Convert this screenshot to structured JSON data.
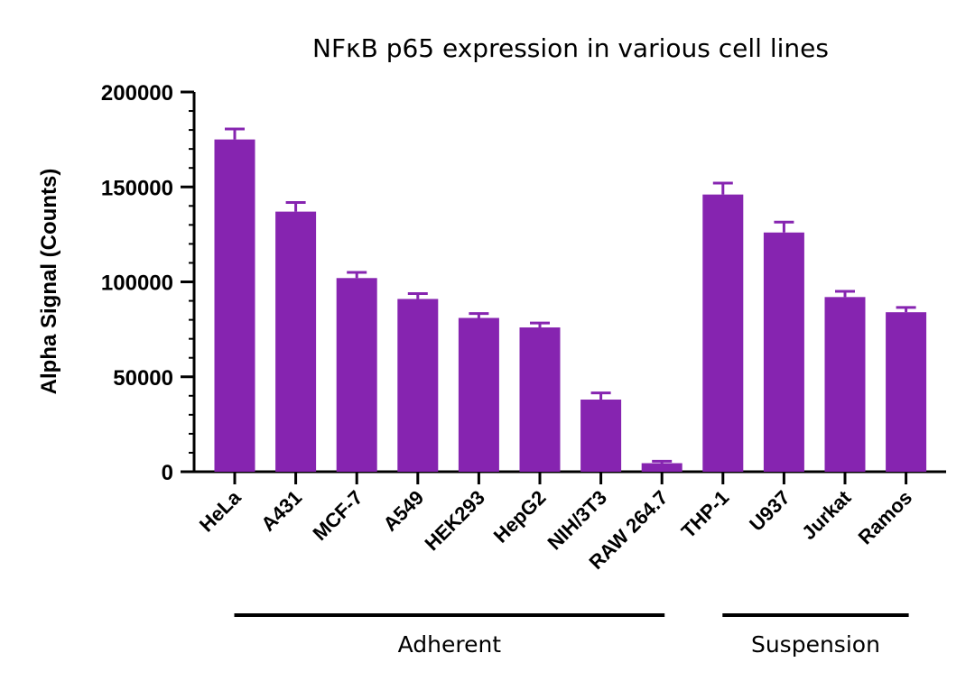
{
  "chart_data": {
    "type": "bar",
    "title": "NFκB p65 expression in various cell lines",
    "xlabel": "",
    "ylabel": "Alpha Signal (Counts)",
    "ylim": [
      0,
      200000
    ],
    "yticks": [
      "0",
      "50000",
      "100000",
      "150000",
      "200000"
    ],
    "categories": [
      "HeLa",
      "A431",
      "MCF-7",
      "A549",
      "HEK293",
      "HepG2",
      "NIH/3T3",
      "RAW 264.7",
      "THP-1",
      "U937",
      "Jurkat",
      "Ramos"
    ],
    "values": [
      175000,
      137000,
      102000,
      91000,
      81000,
      76000,
      38000,
      4500,
      146000,
      126000,
      92000,
      84000
    ],
    "errors": [
      5500,
      4800,
      3000,
      2800,
      2300,
      2300,
      3500,
      1000,
      6000,
      5500,
      3000,
      2500
    ],
    "groups": [
      {
        "label": "Adherent",
        "from": 0,
        "to": 7
      },
      {
        "label": "Suspension",
        "from": 8,
        "to": 11
      }
    ],
    "bar_color": "#8624b0",
    "grid": false,
    "legend": "none"
  }
}
